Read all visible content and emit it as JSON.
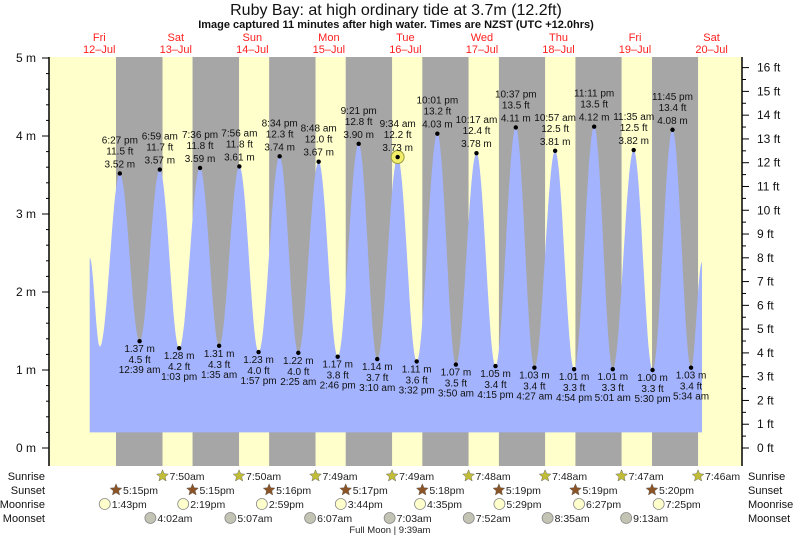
{
  "header": {
    "title": "Ruby Bay: at high  ordinary tide at 3.7m (12.2ft)",
    "subtitle": "Image captured 11 minutes after high water. Times are NZST (UTC +12.0hrs)"
  },
  "colors": {
    "day": "#ffffcc",
    "night": "#a6a6a6",
    "water": "#a3b3fd",
    "day_label": "#ff2020",
    "sunrise": "#c2bd36",
    "sunset": "#8a5426",
    "moonrise": "#ffffcc",
    "moonset": "#c4c4b4",
    "current_marker": "#f2ee6a"
  },
  "chart_data": {
    "type": "area",
    "title": "Ruby Bay: at high  ordinary tide at 3.7m (12.2ft)",
    "y_left": {
      "unit": "m",
      "ylim": [
        0,
        5
      ],
      "ticks": [
        "0 m",
        "1 m",
        "2 m",
        "3 m",
        "4 m",
        "5 m"
      ]
    },
    "y_right": {
      "unit": "ft",
      "ticks": [
        "0 ft",
        "1 ft",
        "2 ft",
        "3 ft",
        "4 ft",
        "5 ft",
        "6 ft",
        "7 ft",
        "8 ft",
        "9 ft",
        "10 ft",
        "11 ft",
        "12 ft",
        "13 ft",
        "14 ft",
        "15 ft",
        "16 ft"
      ]
    },
    "days": [
      {
        "dow": "Fri",
        "date": "12–Jul"
      },
      {
        "dow": "Sat",
        "date": "13–Jul"
      },
      {
        "dow": "Sun",
        "date": "14–Jul"
      },
      {
        "dow": "Mon",
        "date": "15–Jul"
      },
      {
        "dow": "Tue",
        "date": "16–Jul"
      },
      {
        "dow": "Wed",
        "date": "17–Jul"
      },
      {
        "dow": "Thu",
        "date": "18–Jul"
      },
      {
        "dow": "Fri",
        "date": "19–Jul"
      },
      {
        "dow": "Sat",
        "date": "20–Jul"
      }
    ],
    "curve_start": [
      {
        "day": 0,
        "time": "9:00 am",
        "m": 2.44
      },
      {
        "day": 0,
        "time": "12:10 pm",
        "m": 1.3
      }
    ],
    "curve_end": {
      "day": 8,
      "time": "9:00 am",
      "m": 2.38
    },
    "extremes": [
      {
        "type": "high",
        "day": 0,
        "time": "6:27 pm",
        "m": "3.52 m",
        "ft": "11.5 ft",
        "value": 3.52
      },
      {
        "type": "low",
        "day": 1,
        "time": "12:39 am",
        "m": "1.37 m",
        "ft": "4.5 ft",
        "value": 1.37
      },
      {
        "type": "high",
        "day": 1,
        "time": "6:59 am",
        "m": "3.57 m",
        "ft": "11.7 ft",
        "value": 3.57
      },
      {
        "type": "low",
        "day": 1,
        "time": "1:03 pm",
        "m": "1.28 m",
        "ft": "4.2 ft",
        "value": 1.28
      },
      {
        "type": "high",
        "day": 1,
        "time": "7:36 pm",
        "m": "3.59 m",
        "ft": "11.8 ft",
        "value": 3.59
      },
      {
        "type": "low",
        "day": 2,
        "time": "1:35 am",
        "m": "1.31 m",
        "ft": "4.3 ft",
        "value": 1.31
      },
      {
        "type": "high",
        "day": 2,
        "time": "7:56 am",
        "m": "3.61 m",
        "ft": "11.8 ft",
        "value": 3.61
      },
      {
        "type": "low",
        "day": 2,
        "time": "1:57 pm",
        "m": "1.23 m",
        "ft": "4.0 ft",
        "value": 1.23
      },
      {
        "type": "high",
        "day": 2,
        "time": "8:34 pm",
        "m": "3.74 m",
        "ft": "12.3 ft",
        "value": 3.74
      },
      {
        "type": "low",
        "day": 3,
        "time": "2:25 am",
        "m": "1.22 m",
        "ft": "4.0 ft",
        "value": 1.22
      },
      {
        "type": "high",
        "day": 3,
        "time": "8:48 am",
        "m": "3.67 m",
        "ft": "12.0 ft",
        "value": 3.67
      },
      {
        "type": "low",
        "day": 3,
        "time": "2:46 pm",
        "m": "1.17 m",
        "ft": "3.8 ft",
        "value": 1.17
      },
      {
        "type": "high",
        "day": 3,
        "time": "9:21 pm",
        "m": "3.90 m",
        "ft": "12.8 ft",
        "value": 3.9
      },
      {
        "type": "low",
        "day": 4,
        "time": "3:10 am",
        "m": "1.14 m",
        "ft": "3.7 ft",
        "value": 1.14
      },
      {
        "type": "high",
        "day": 4,
        "time": "9:34 am",
        "m": "3.73 m",
        "ft": "12.2 ft",
        "value": 3.73,
        "current": true
      },
      {
        "type": "low",
        "day": 4,
        "time": "3:32 pm",
        "m": "1.11 m",
        "ft": "3.6 ft",
        "value": 1.11
      },
      {
        "type": "high",
        "day": 4,
        "time": "10:01 pm",
        "m": "4.03 m",
        "ft": "13.2 ft",
        "value": 4.03
      },
      {
        "type": "low",
        "day": 5,
        "time": "3:50 am",
        "m": "1.07 m",
        "ft": "3.5 ft",
        "value": 1.07
      },
      {
        "type": "high",
        "day": 5,
        "time": "10:17 am",
        "m": "3.78 m",
        "ft": "12.4 ft",
        "value": 3.78
      },
      {
        "type": "low",
        "day": 5,
        "time": "4:15 pm",
        "m": "1.05 m",
        "ft": "3.4 ft",
        "value": 1.05
      },
      {
        "type": "high",
        "day": 5,
        "time": "10:37 pm",
        "m": "4.11 m",
        "ft": "13.5 ft",
        "value": 4.11
      },
      {
        "type": "low",
        "day": 6,
        "time": "4:27 am",
        "m": "1.03 m",
        "ft": "3.4 ft",
        "value": 1.03
      },
      {
        "type": "high",
        "day": 6,
        "time": "10:57 am",
        "m": "3.81 m",
        "ft": "12.5 ft",
        "value": 3.81
      },
      {
        "type": "low",
        "day": 6,
        "time": "4:54 pm",
        "m": "1.01 m",
        "ft": "3.3 ft",
        "value": 1.01
      },
      {
        "type": "high",
        "day": 6,
        "time": "11:11 pm",
        "m": "4.12 m",
        "ft": "13.5 ft",
        "value": 4.12
      },
      {
        "type": "low",
        "day": 7,
        "time": "5:01 am",
        "m": "1.01 m",
        "ft": "3.3 ft",
        "value": 1.01
      },
      {
        "type": "high",
        "day": 7,
        "time": "11:35 am",
        "m": "3.82 m",
        "ft": "12.5 ft",
        "value": 3.82
      },
      {
        "type": "low",
        "day": 7,
        "time": "5:30 pm",
        "m": "1.00 m",
        "ft": "3.3 ft",
        "value": 1.0
      },
      {
        "type": "high",
        "day": 7,
        "time": "11:45 pm",
        "m": "4.08 m",
        "ft": "13.4 ft",
        "value": 4.08
      },
      {
        "type": "low",
        "day": 8,
        "time": "5:34 am",
        "m": "1.03 m",
        "ft": "3.4 ft",
        "value": 1.03
      }
    ]
  },
  "astro": {
    "row_labels": {
      "sunrise": "Sunrise",
      "sunset": "Sunset",
      "moonrise": "Moonrise",
      "moonset": "Moonset"
    },
    "sunrise": [
      {
        "day": 1,
        "time": "7:50am"
      },
      {
        "day": 2,
        "time": "7:50am"
      },
      {
        "day": 3,
        "time": "7:49am"
      },
      {
        "day": 4,
        "time": "7:49am"
      },
      {
        "day": 5,
        "time": "7:48am"
      },
      {
        "day": 6,
        "time": "7:48am"
      },
      {
        "day": 7,
        "time": "7:47am"
      },
      {
        "day": 8,
        "time": "7:46am"
      }
    ],
    "sunset": [
      {
        "day": 0,
        "time": "5:15pm"
      },
      {
        "day": 1,
        "time": "5:15pm"
      },
      {
        "day": 2,
        "time": "5:16pm"
      },
      {
        "day": 3,
        "time": "5:17pm"
      },
      {
        "day": 4,
        "time": "5:18pm"
      },
      {
        "day": 5,
        "time": "5:19pm"
      },
      {
        "day": 6,
        "time": "5:19pm"
      },
      {
        "day": 7,
        "time": "5:20pm"
      }
    ],
    "moonrise": [
      {
        "day": 0,
        "time": "1:43pm"
      },
      {
        "day": 1,
        "time": "2:19pm"
      },
      {
        "day": 2,
        "time": "2:59pm"
      },
      {
        "day": 3,
        "time": "3:44pm"
      },
      {
        "day": 4,
        "time": "4:35pm"
      },
      {
        "day": 5,
        "time": "5:29pm"
      },
      {
        "day": 6,
        "time": "6:27pm"
      },
      {
        "day": 7,
        "time": "7:25pm"
      }
    ],
    "moonset": [
      {
        "day": 1,
        "time": "4:02am"
      },
      {
        "day": 2,
        "time": "5:07am"
      },
      {
        "day": 3,
        "time": "6:07am"
      },
      {
        "day": 4,
        "time": "7:03am"
      },
      {
        "day": 5,
        "time": "7:52am"
      },
      {
        "day": 6,
        "time": "8:35am"
      },
      {
        "day": 7,
        "time": "9:13am"
      }
    ],
    "moon_phase": {
      "day": 4,
      "text": "Full Moon | 9:39am"
    }
  }
}
